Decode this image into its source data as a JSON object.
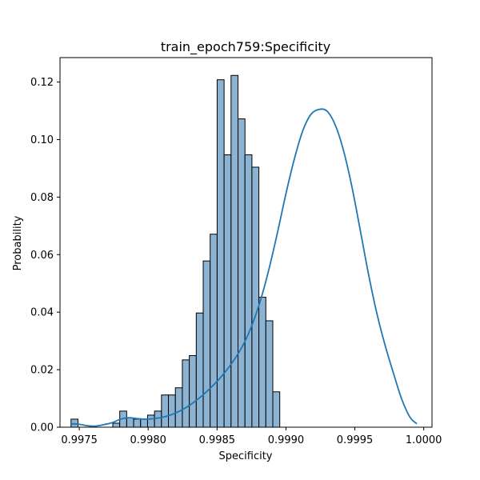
{
  "chart_data": {
    "type": "bar",
    "subtype": "histogram-with-kde",
    "title": "train_epoch759:Specificity",
    "xlabel": "Specificity",
    "ylabel": "Probability",
    "xlim": [
      0.99736,
      1.00006
    ],
    "ylim": [
      0,
      0.1285
    ],
    "xticks": [
      0.9975,
      0.998,
      0.9985,
      0.999,
      0.9995,
      1.0
    ],
    "xtick_labels": [
      "0.9975",
      "0.9980",
      "0.9985",
      "0.9990",
      "0.9995",
      "1.0000"
    ],
    "yticks": [
      0.0,
      0.02,
      0.04,
      0.06,
      0.08,
      0.1,
      0.12
    ],
    "ytick_labels": [
      "0.00",
      "0.02",
      "0.04",
      "0.06",
      "0.08",
      "0.10",
      "0.12"
    ],
    "grid": false,
    "legend": false,
    "colors": {
      "bar_fill": "#8db3d3",
      "bar_edge": "#000000",
      "kde_line": "#1f77b4"
    },
    "bin_width": 5.05e-05,
    "bins": [
      {
        "x0": 0.99744,
        "value": 0.0028
      },
      {
        "x0": 0.9974905,
        "value": 0.0
      },
      {
        "x0": 0.997541,
        "value": 0.0
      },
      {
        "x0": 0.9975915,
        "value": 0.0
      },
      {
        "x0": 0.997642,
        "value": 0.0
      },
      {
        "x0": 0.9976925,
        "value": 0.0
      },
      {
        "x0": 0.997743,
        "value": 0.0014
      },
      {
        "x0": 0.9977935,
        "value": 0.0056
      },
      {
        "x0": 0.997844,
        "value": 0.0032
      },
      {
        "x0": 0.9978945,
        "value": 0.0028
      },
      {
        "x0": 0.997945,
        "value": 0.0028
      },
      {
        "x0": 0.9979955,
        "value": 0.0042
      },
      {
        "x0": 0.998046,
        "value": 0.0056
      },
      {
        "x0": 0.9980965,
        "value": 0.0112
      },
      {
        "x0": 0.998147,
        "value": 0.0112
      },
      {
        "x0": 0.9981975,
        "value": 0.0137
      },
      {
        "x0": 0.998248,
        "value": 0.0234
      },
      {
        "x0": 0.9982985,
        "value": 0.0249
      },
      {
        "x0": 0.998349,
        "value": 0.0397
      },
      {
        "x0": 0.9983995,
        "value": 0.0578
      },
      {
        "x0": 0.99845,
        "value": 0.0671
      },
      {
        "x0": 0.9985005,
        "value": 0.1208
      },
      {
        "x0": 0.998551,
        "value": 0.0947
      },
      {
        "x0": 0.9986015,
        "value": 0.1223
      },
      {
        "x0": 0.998652,
        "value": 0.1072
      },
      {
        "x0": 0.9987025,
        "value": 0.0947
      },
      {
        "x0": 0.998753,
        "value": 0.0904
      },
      {
        "x0": 0.9988035,
        "value": 0.0452
      },
      {
        "x0": 0.998854,
        "value": 0.037
      },
      {
        "x0": 0.9989045,
        "value": 0.0123
      }
    ],
    "kde": {
      "x": [
        0.99744,
        0.9975,
        0.99756,
        0.99762,
        0.99768,
        0.99774,
        0.9978,
        0.99786,
        0.99792,
        0.99798,
        0.99804,
        0.9981,
        0.99816,
        0.99822,
        0.99828,
        0.99834,
        0.9984,
        0.99846,
        0.99852,
        0.99858,
        0.99864,
        0.9987,
        0.99876,
        0.99882,
        0.99888,
        0.99894,
        0.999,
        0.99906,
        0.99912,
        0.99918,
        0.99924,
        0.9993,
        0.99936,
        0.99942,
        0.99948,
        0.99954,
        0.9996,
        0.99966,
        0.99972,
        0.99978,
        0.99984,
        0.9999,
        0.99995
      ],
      "y": [
        0.0012,
        0.001,
        0.0005,
        0.0004,
        0.0009,
        0.0016,
        0.0028,
        0.0033,
        0.003,
        0.0028,
        0.003,
        0.0034,
        0.0042,
        0.0054,
        0.007,
        0.009,
        0.0113,
        0.014,
        0.017,
        0.0205,
        0.0246,
        0.0296,
        0.0363,
        0.0449,
        0.0556,
        0.068,
        0.0812,
        0.0931,
        0.1028,
        0.1087,
        0.1105,
        0.1098,
        0.1048,
        0.0958,
        0.0833,
        0.0683,
        0.053,
        0.0395,
        0.0284,
        0.0188,
        0.0098,
        0.0035,
        0.0012
      ]
    }
  }
}
